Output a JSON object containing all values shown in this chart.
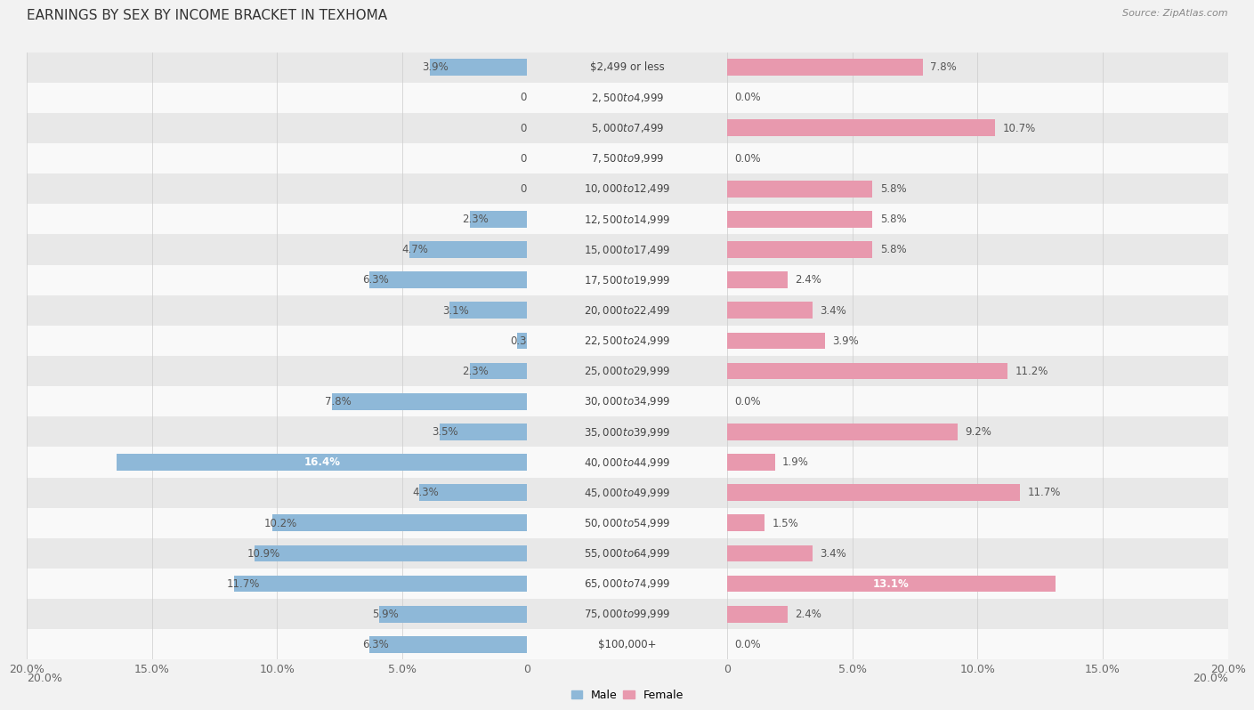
{
  "title": "EARNINGS BY SEX BY INCOME BRACKET IN TEXHOMA",
  "source": "Source: ZipAtlas.com",
  "categories": [
    "$2,499 or less",
    "$2,500 to $4,999",
    "$5,000 to $7,499",
    "$7,500 to $9,999",
    "$10,000 to $12,499",
    "$12,500 to $14,999",
    "$15,000 to $17,499",
    "$17,500 to $19,999",
    "$20,000 to $22,499",
    "$22,500 to $24,999",
    "$25,000 to $29,999",
    "$30,000 to $34,999",
    "$35,000 to $39,999",
    "$40,000 to $44,999",
    "$45,000 to $49,999",
    "$50,000 to $54,999",
    "$55,000 to $64,999",
    "$65,000 to $74,999",
    "$75,000 to $99,999",
    "$100,000+"
  ],
  "male_values": [
    3.9,
    0.0,
    0.0,
    0.0,
    0.0,
    2.3,
    4.7,
    6.3,
    3.1,
    0.39,
    2.3,
    7.8,
    3.5,
    16.4,
    4.3,
    10.2,
    10.9,
    11.7,
    5.9,
    6.3
  ],
  "female_values": [
    7.8,
    0.0,
    10.7,
    0.0,
    5.8,
    5.8,
    5.8,
    2.4,
    3.4,
    3.9,
    11.2,
    0.0,
    9.2,
    1.9,
    11.7,
    1.5,
    3.4,
    13.1,
    2.4,
    0.0
  ],
  "male_color": "#8eb8d8",
  "female_color": "#e899ae",
  "bg_color": "#f2f2f2",
  "row_color_odd": "#f9f9f9",
  "row_color_even": "#e8e8e8",
  "axis_limit": 20.0,
  "bar_height": 0.55,
  "title_fontsize": 11,
  "label_fontsize": 8.5,
  "tick_fontsize": 9,
  "category_fontsize": 8.5,
  "special_male_idx": 13,
  "special_female_idx": 17
}
